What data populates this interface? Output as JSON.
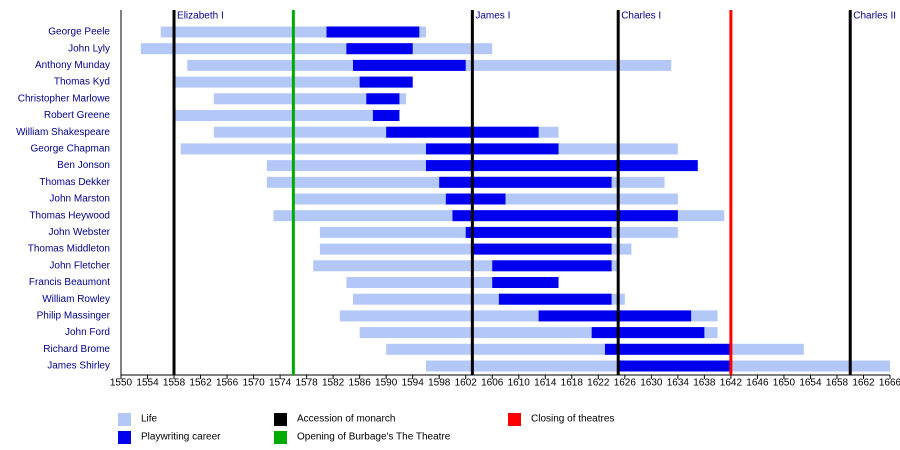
{
  "chart_data": {
    "type": "timeline",
    "categories": [
      "George Peele",
      "John Lyly",
      "Anthony Munday",
      "Thomas Kyd",
      "Christopher Marlowe",
      "Robert Greene",
      "William Shakespeare",
      "George Chapman",
      "Ben Jonson",
      "Thomas Dekker",
      "John Marston",
      "Thomas Heywood",
      "John Webster",
      "Thomas Middleton",
      "John Fletcher",
      "Francis Beaumont",
      "William Rowley",
      "Philip Massinger",
      "John Ford",
      "Richard Brome",
      "James Shirley"
    ],
    "series": [
      {
        "name": "Life",
        "color": "#b4c8f8",
        "start": [
          1556,
          1553,
          1560,
          1558,
          1564,
          1558,
          1564,
          1559,
          1572,
          1572,
          1576,
          1573,
          1580,
          1580,
          1579,
          1584,
          1585,
          1583,
          1586,
          1590,
          1596
        ],
        "end": [
          1596,
          1606,
          1633,
          1594,
          1593,
          1592,
          1616,
          1634,
          1637,
          1632,
          1634,
          1641,
          1634,
          1627,
          1625,
          1616,
          1626,
          1640,
          1640,
          1653,
          1666
        ]
      },
      {
        "name": "Playwriting career",
        "color": "#0000ee",
        "start": [
          1581,
          1584,
          1585,
          1586,
          1587,
          1588,
          1590,
          1596,
          1596,
          1598,
          1599,
          1600,
          1602,
          1603,
          1606,
          1606,
          1607,
          1613,
          1621,
          1623,
          1625
        ],
        "end": [
          1595,
          1594,
          1602,
          1594,
          1592,
          1592,
          1613,
          1616,
          1637,
          1624,
          1608,
          1634,
          1624,
          1624,
          1624,
          1616,
          1624,
          1636,
          1638,
          1642,
          1642
        ]
      }
    ],
    "markers": [
      {
        "name": "Accession of monarch",
        "color": "#000000",
        "values": [
          1558,
          1603,
          1625,
          1660
        ],
        "labels": [
          "Elizabeth I",
          "James I",
          "Charles I",
          "Charles II"
        ]
      },
      {
        "name": "Opening of Burbage's The Theatre",
        "color": "#00aa00",
        "values": [
          1576
        ]
      },
      {
        "name": "Closing of theatres",
        "color": "#ff0000",
        "values": [
          1642
        ]
      }
    ],
    "xlim": [
      1550,
      1666
    ],
    "xticks": [
      1550,
      1554,
      1558,
      1562,
      1566,
      1570,
      1574,
      1578,
      1582,
      1586,
      1590,
      1594,
      1598,
      1602,
      1606,
      1610,
      1614,
      1618,
      1622,
      1626,
      1630,
      1634,
      1638,
      1642,
      1646,
      1650,
      1654,
      1658,
      1662,
      1666
    ]
  }
}
